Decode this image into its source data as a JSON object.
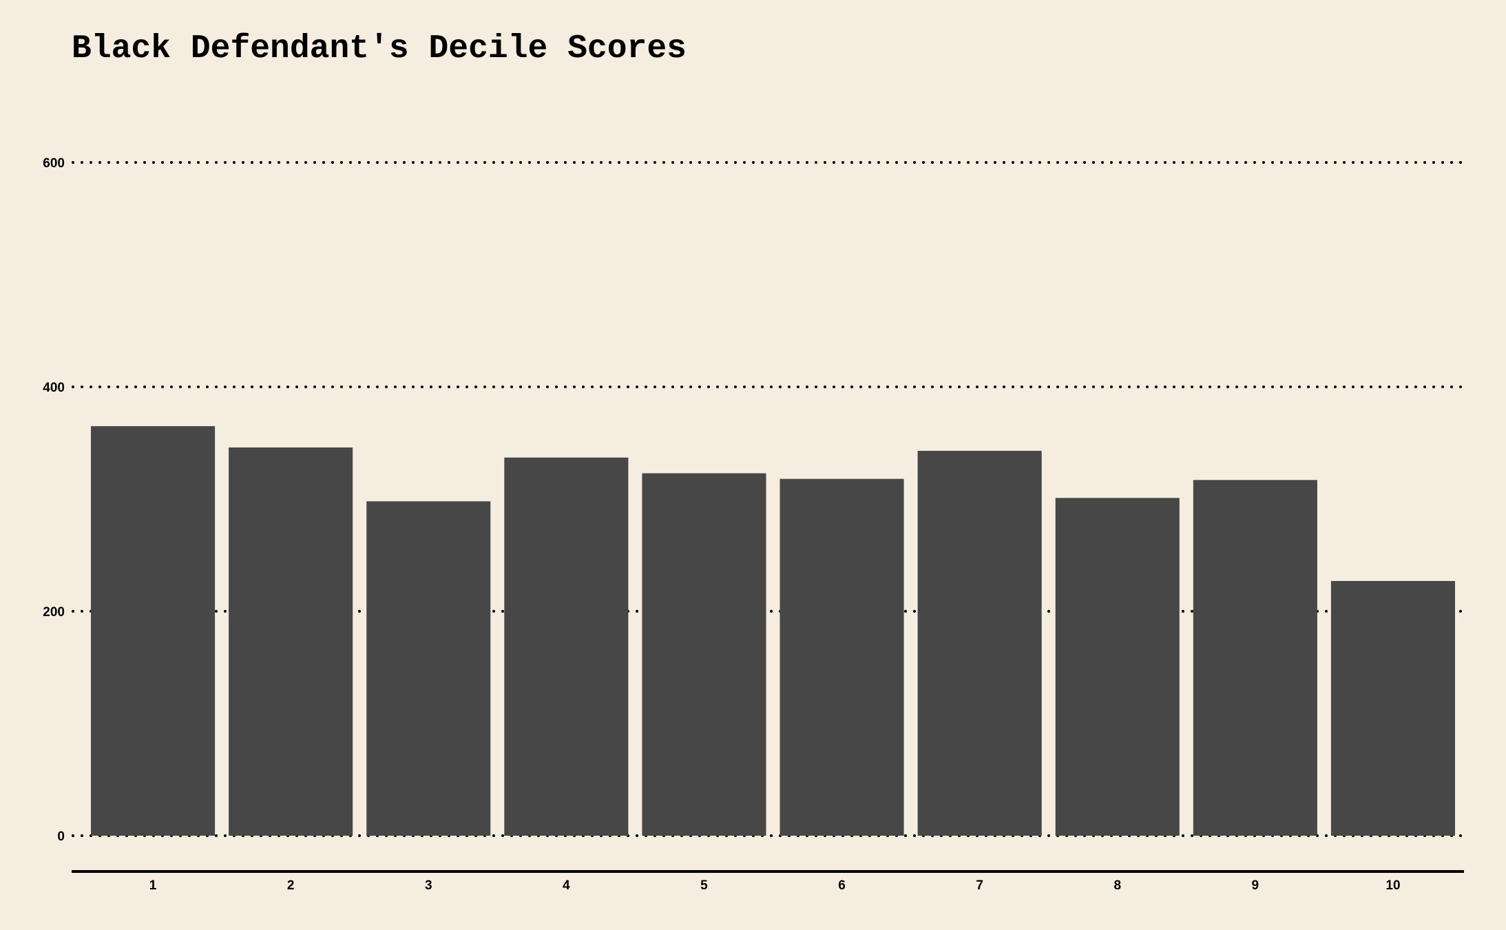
{
  "chart_data": {
    "type": "bar",
    "title": "Black Defendant's Decile Scores",
    "xlabel": "",
    "ylabel": "",
    "categories": [
      "1",
      "2",
      "3",
      "4",
      "5",
      "6",
      "7",
      "8",
      "9",
      "10"
    ],
    "values": [
      365,
      346,
      298,
      337,
      323,
      318,
      343,
      301,
      317,
      227
    ],
    "ylim": [
      0,
      650
    ],
    "yticks": [
      0,
      200,
      400,
      600
    ],
    "ytick_labels": [
      "0",
      "200",
      "400",
      "600"
    ],
    "grid": "horizontal dotted",
    "legend": "none",
    "colors": {
      "background": "#f5eee0",
      "bar": "#474747",
      "grid": "#000000",
      "axis": "#000000",
      "text": "#000000"
    }
  }
}
